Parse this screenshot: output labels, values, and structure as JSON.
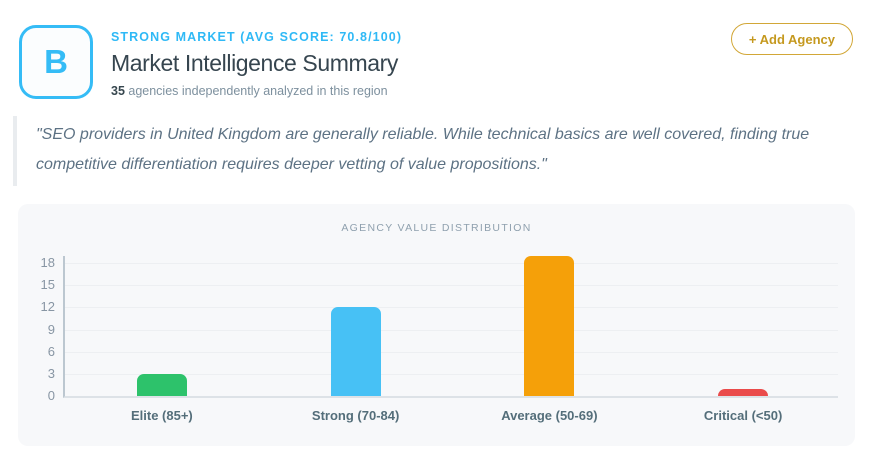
{
  "header": {
    "grade": "B",
    "eyebrow": "STRONG MARKET (AVG SCORE: 70.8/100)",
    "title": "Market Intelligence Summary",
    "agency_count": "35",
    "subtitle_rest": " agencies independently analyzed in this region",
    "add_button_label": "+ Add Agency"
  },
  "quote": {
    "text": "\"SEO providers in United Kingdom are generally reliable. While technical basics are well covered, finding true competitive differentiation requires deeper vetting of value propositions.\""
  },
  "chart_data": {
    "type": "bar",
    "title": "AGENCY VALUE DISTRIBUTION",
    "categories": [
      "Elite (85+)",
      "Strong (70-84)",
      "Average (50-69)",
      "Critical (<50)"
    ],
    "values": [
      3,
      12,
      19,
      1
    ],
    "bar_colors": [
      "#2dc26b",
      "#47c1f5",
      "#f5a009",
      "#ea4b4b"
    ],
    "ylabel": "",
    "xlabel": "",
    "ylim": [
      0,
      18
    ],
    "yticks": [
      0,
      3,
      6,
      9,
      12,
      15,
      18
    ],
    "grid": true,
    "legend": false
  },
  "colors": {
    "accent_cyan": "#35bcf6",
    "gold": "#c5991f",
    "heading": "#37474f",
    "panel_bg": "#f7f8fa"
  }
}
